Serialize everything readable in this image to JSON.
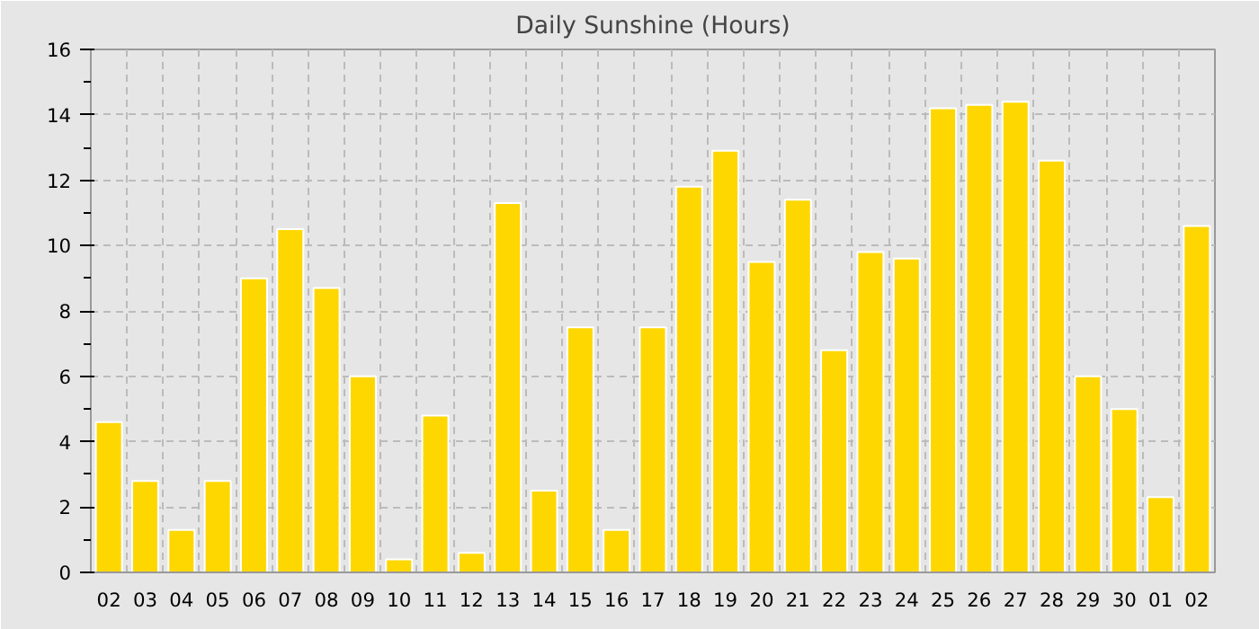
{
  "chart_data": {
    "type": "bar",
    "title": "Daily Sunshine (Hours)",
    "categories": [
      "02",
      "03",
      "04",
      "05",
      "06",
      "07",
      "08",
      "09",
      "10",
      "11",
      "12",
      "13",
      "14",
      "15",
      "16",
      "17",
      "18",
      "19",
      "20",
      "21",
      "22",
      "23",
      "24",
      "25",
      "26",
      "27",
      "28",
      "29",
      "30",
      "01",
      "02"
    ],
    "values": [
      4.6,
      2.8,
      1.3,
      2.8,
      9.0,
      10.5,
      8.7,
      6.0,
      0.4,
      4.8,
      0.6,
      11.3,
      2.5,
      7.5,
      1.3,
      7.5,
      11.8,
      12.9,
      9.5,
      11.4,
      6.8,
      9.8,
      9.6,
      14.2,
      14.3,
      14.4,
      12.6,
      6.0,
      5.0,
      2.3,
      10.6
    ],
    "color": "#ffd700",
    "ylim": [
      0,
      16
    ],
    "yticks": [
      0,
      2,
      4,
      6,
      8,
      10,
      12,
      14,
      16
    ],
    "grid": true
  }
}
